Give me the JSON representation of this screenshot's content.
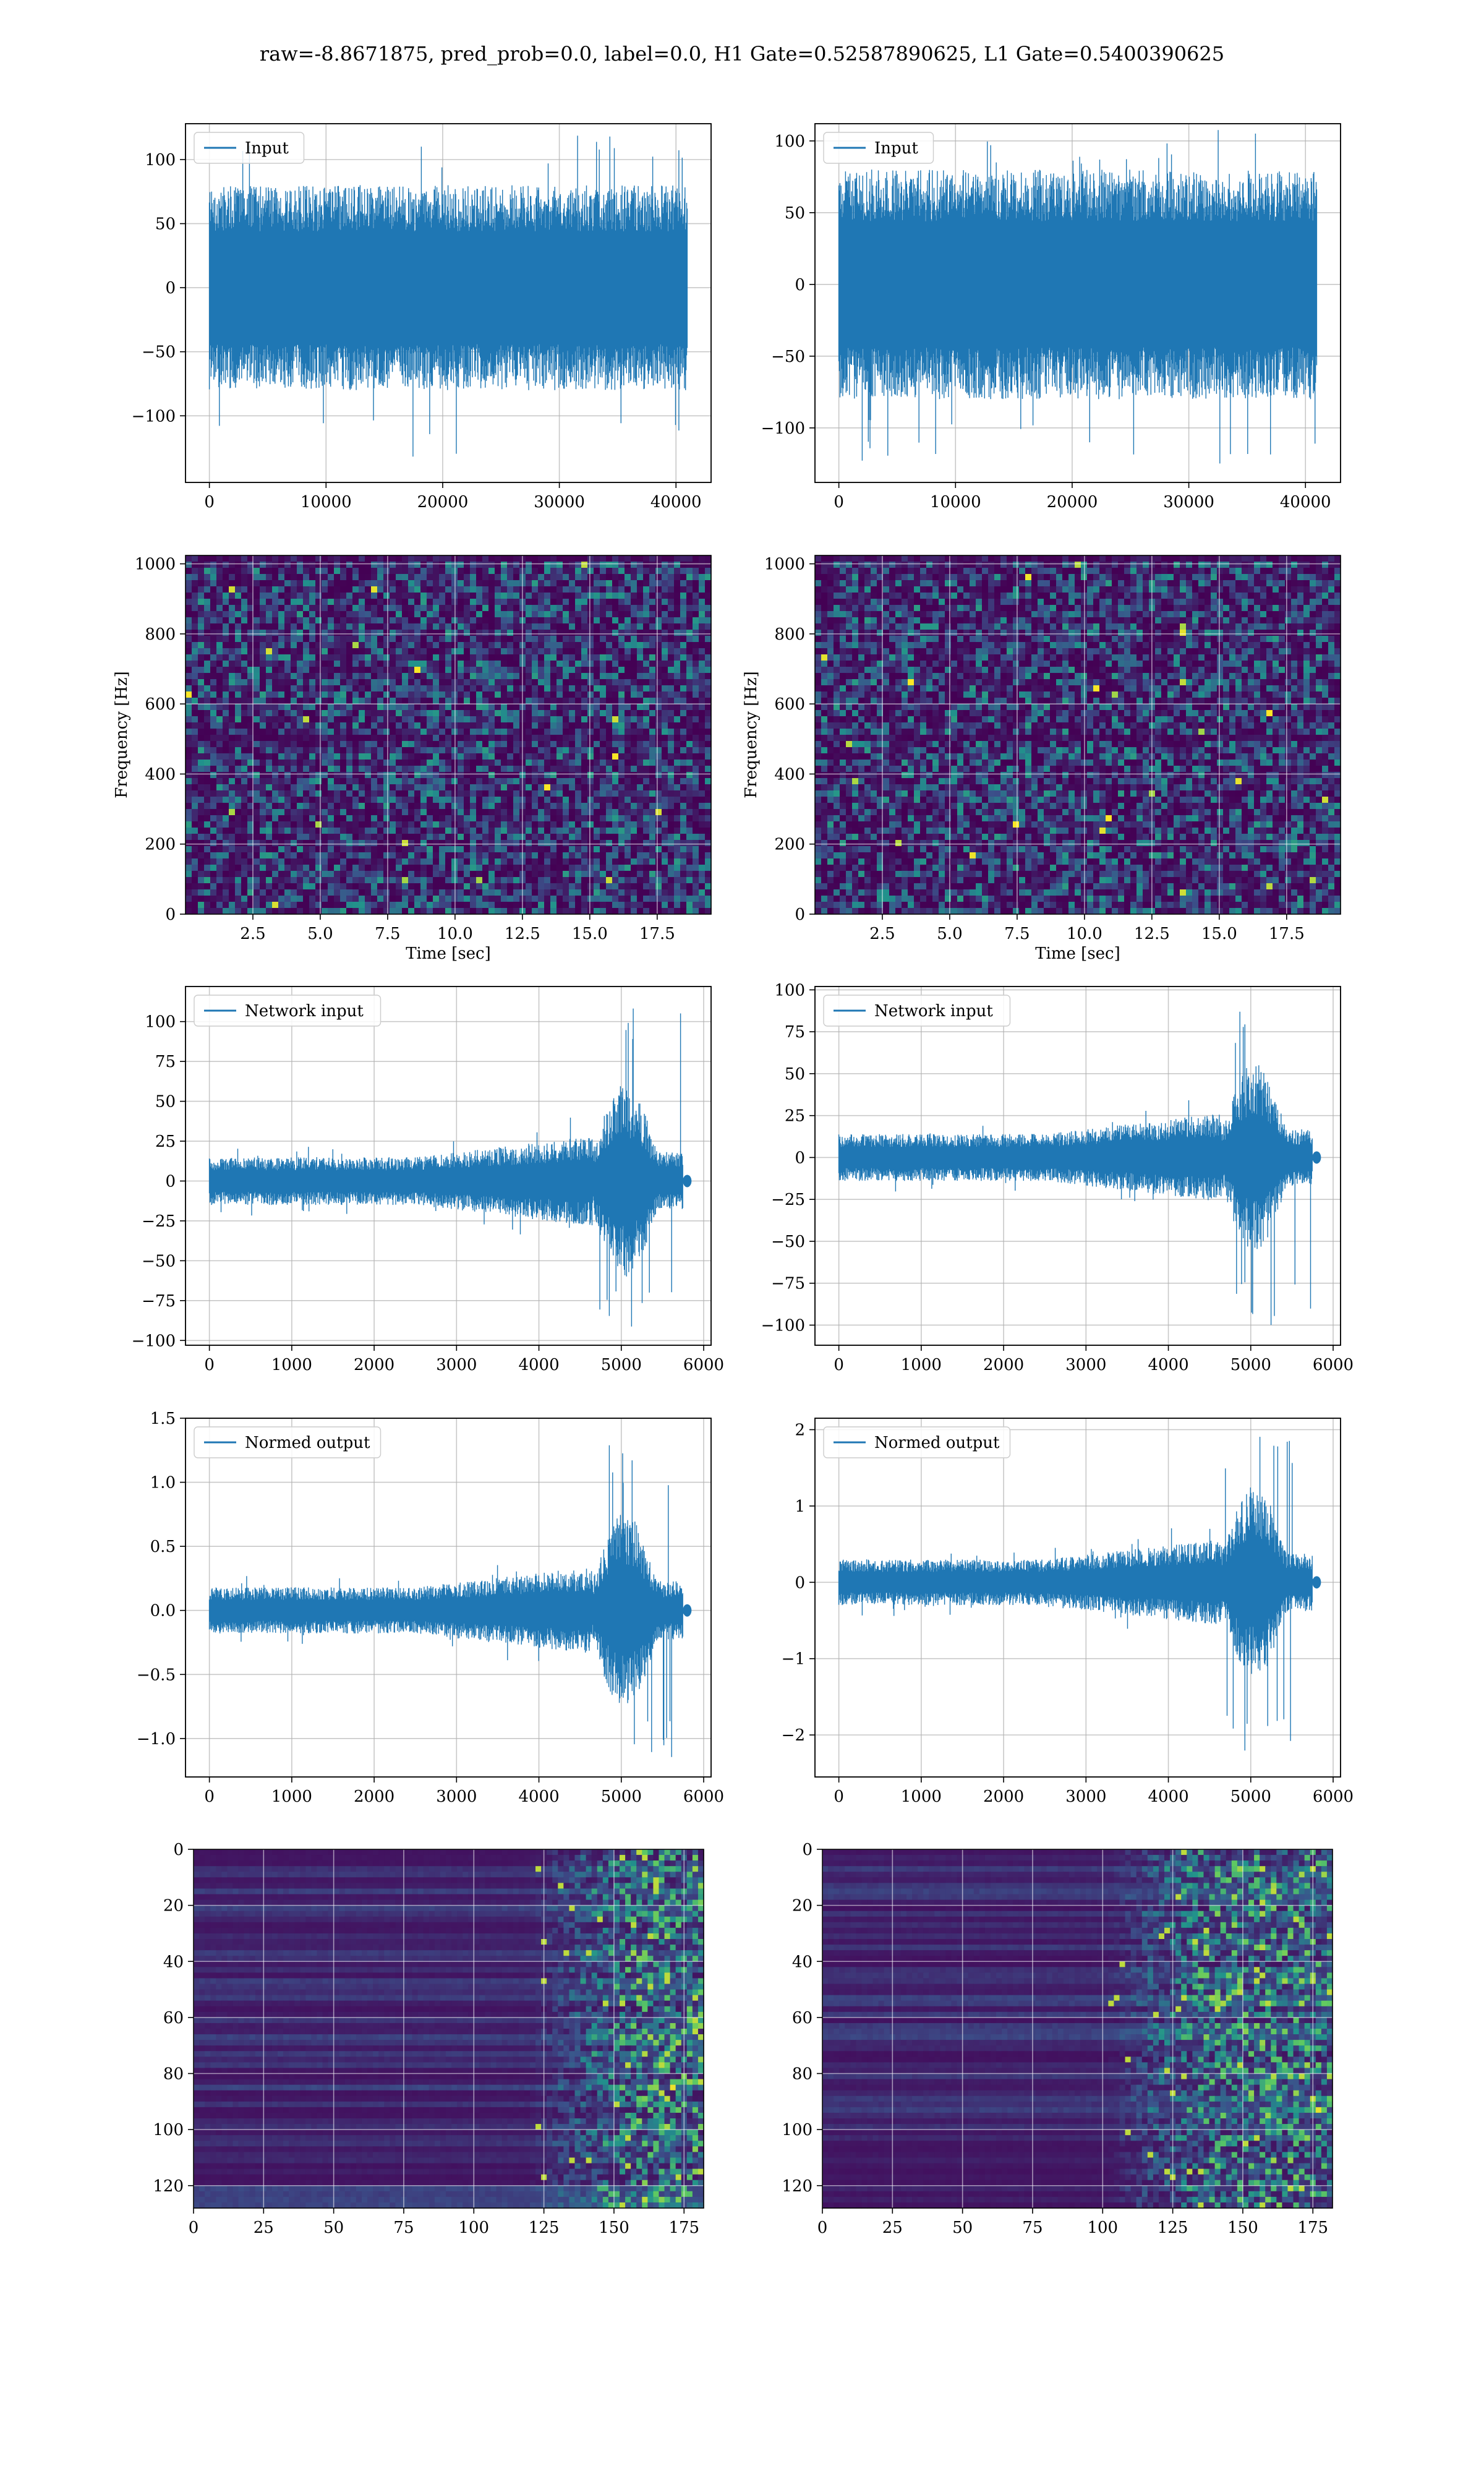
{
  "suptitle": "raw=-8.8671875, pred_prob=0.0, label=0.0, H1 Gate=0.52587890625, L1 Gate=0.5400390625",
  "colors": {
    "line": "#1f77b4",
    "grid": "#b0b0b0",
    "viridis_low": "#440154",
    "viridis_high": "#fde725"
  },
  "chart_data": [
    {
      "id": "h1-input",
      "type": "line",
      "legend": "Input",
      "legend_position": "upper-left",
      "grid": true,
      "xlim": [
        -2048,
        43008
      ],
      "ylim": [
        -152,
        128
      ],
      "xticks": [
        0,
        10000,
        20000,
        30000,
        40000
      ],
      "xtick_labels": [
        "0",
        "10000",
        "20000",
        "30000",
        "40000"
      ],
      "yticks": [
        -100,
        -50,
        0,
        50,
        100
      ],
      "ytick_labels": [
        "−100",
        "−50",
        "0",
        "50",
        "100"
      ],
      "series": [
        {
          "x_range": [
            0,
            40960
          ],
          "envelope_hi": 80,
          "envelope_lo": -80,
          "peak_max": 120,
          "peak_min": -135
        }
      ]
    },
    {
      "id": "l1-input",
      "type": "line",
      "legend": "Input",
      "legend_position": "upper-left",
      "grid": true,
      "xlim": [
        -2048,
        43008
      ],
      "ylim": [
        -138,
        112
      ],
      "xticks": [
        0,
        10000,
        20000,
        30000,
        40000
      ],
      "xtick_labels": [
        "0",
        "10000",
        "20000",
        "30000",
        "40000"
      ],
      "yticks": [
        -100,
        -50,
        0,
        50,
        100
      ],
      "ytick_labels": [
        "−100",
        "−50",
        "0",
        "50",
        "100"
      ],
      "series": [
        {
          "x_range": [
            0,
            40960
          ],
          "envelope_hi": 80,
          "envelope_lo": -80,
          "peak_max": 108,
          "peak_min": -125
        }
      ]
    },
    {
      "id": "h1-spectrogram",
      "type": "heatmap",
      "colormap": "viridis",
      "grid": true,
      "xlabel": "Time [sec]",
      "ylabel": "Frequency [Hz]",
      "xlim": [
        0,
        19.5
      ],
      "ylim": [
        0,
        1024
      ],
      "xticks": [
        2.5,
        5.0,
        7.5,
        10.0,
        12.5,
        15.0,
        17.5
      ],
      "xtick_labels": [
        "2.5",
        "5.0",
        "7.5",
        "10.0",
        "12.5",
        "15.0",
        "17.5"
      ],
      "yticks": [
        0,
        200,
        400,
        600,
        800,
        1000
      ],
      "ytick_labels": [
        "0",
        "200",
        "400",
        "600",
        "800",
        "1000"
      ]
    },
    {
      "id": "l1-spectrogram",
      "type": "heatmap",
      "colormap": "viridis",
      "grid": true,
      "xlabel": "Time [sec]",
      "ylabel": "Frequency [Hz]",
      "xlim": [
        0,
        19.5
      ],
      "ylim": [
        0,
        1024
      ],
      "xticks": [
        2.5,
        5.0,
        7.5,
        10.0,
        12.5,
        15.0,
        17.5
      ],
      "xtick_labels": [
        "2.5",
        "5.0",
        "7.5",
        "10.0",
        "12.5",
        "15.0",
        "17.5"
      ],
      "yticks": [
        0,
        200,
        400,
        600,
        800,
        1000
      ],
      "ytick_labels": [
        "0",
        "200",
        "400",
        "600",
        "800",
        "1000"
      ]
    },
    {
      "id": "h1-network-input",
      "type": "line",
      "legend": "Network input",
      "legend_position": "upper-left",
      "grid": true,
      "xlim": [
        -290,
        6090
      ],
      "ylim": [
        -103,
        122
      ],
      "xticks": [
        0,
        1000,
        2000,
        3000,
        4000,
        5000,
        6000
      ],
      "xtick_labels": [
        "0",
        "1000",
        "2000",
        "3000",
        "4000",
        "5000",
        "6000"
      ],
      "yticks": [
        -100,
        -75,
        -50,
        -25,
        0,
        25,
        50,
        75,
        100
      ],
      "ytick_labels": [
        "−100",
        "−75",
        "−50",
        "−25",
        "0",
        "25",
        "50",
        "75",
        "100"
      ],
      "series": [
        {
          "x_range": [
            0,
            5800
          ],
          "quiet_amp": 15,
          "chirp_start": 4650,
          "chirp_end": 5750,
          "peak_max": 110,
          "peak_min": -93
        }
      ]
    },
    {
      "id": "l1-network-input",
      "type": "line",
      "legend": "Network input",
      "legend_position": "upper-left",
      "grid": true,
      "xlim": [
        -290,
        6090
      ],
      "ylim": [
        -112,
        102
      ],
      "xticks": [
        0,
        1000,
        2000,
        3000,
        4000,
        5000,
        6000
      ],
      "xtick_labels": [
        "0",
        "1000",
        "2000",
        "3000",
        "4000",
        "5000",
        "6000"
      ],
      "yticks": [
        -100,
        -75,
        -50,
        -25,
        0,
        25,
        50,
        75,
        100
      ],
      "ytick_labels": [
        "−100",
        "−75",
        "−50",
        "−25",
        "0",
        "25",
        "50",
        "75",
        "100"
      ],
      "series": [
        {
          "x_range": [
            0,
            5800
          ],
          "quiet_amp": 14,
          "chirp_start": 4650,
          "chirp_end": 5750,
          "peak_max": 92,
          "peak_min": -102
        }
      ]
    },
    {
      "id": "h1-normed-output",
      "type": "line",
      "legend": "Normed output",
      "legend_position": "upper-left",
      "grid": true,
      "xlim": [
        -290,
        6090
      ],
      "ylim": [
        -1.3,
        1.5
      ],
      "xticks": [
        0,
        1000,
        2000,
        3000,
        4000,
        5000,
        6000
      ],
      "xtick_labels": [
        "0",
        "1000",
        "2000",
        "3000",
        "4000",
        "5000",
        "6000"
      ],
      "yticks": [
        -1.0,
        -0.5,
        0.0,
        0.5,
        1.0,
        1.5
      ],
      "ytick_labels": [
        "−1.0",
        "−0.5",
        "0.0",
        "0.5",
        "1.0",
        "1.5"
      ],
      "series": [
        {
          "x_range": [
            0,
            5800
          ],
          "quiet_amp": 0.18,
          "chirp_start": 4650,
          "chirp_end": 5750,
          "peak_max": 1.38,
          "peak_min": -1.2
        }
      ]
    },
    {
      "id": "l1-normed-output",
      "type": "line",
      "legend": "Normed output",
      "legend_position": "upper-left",
      "grid": true,
      "xlim": [
        -290,
        6090
      ],
      "ylim": [
        -2.55,
        2.15
      ],
      "xticks": [
        0,
        1000,
        2000,
        3000,
        4000,
        5000,
        6000
      ],
      "xtick_labels": [
        "0",
        "1000",
        "2000",
        "3000",
        "4000",
        "5000",
        "6000"
      ],
      "yticks": [
        -2,
        -1,
        0,
        1,
        2
      ],
      "ytick_labels": [
        "−2",
        "−1",
        "0",
        "1",
        "2"
      ],
      "series": [
        {
          "x_range": [
            0,
            5800
          ],
          "quiet_amp": 0.3,
          "chirp_start": 4650,
          "chirp_end": 5750,
          "peak_max": 2.02,
          "peak_min": -2.3
        }
      ]
    },
    {
      "id": "h1-feature-map",
      "type": "heatmap",
      "colormap": "viridis",
      "grid": true,
      "y_inverted": true,
      "xlim": [
        0,
        182
      ],
      "ylim": [
        128,
        0
      ],
      "active_start": 120,
      "xticks": [
        0,
        25,
        50,
        75,
        100,
        125,
        150,
        175
      ],
      "xtick_labels": [
        "0",
        "25",
        "50",
        "75",
        "100",
        "125",
        "150",
        "175"
      ],
      "yticks": [
        0,
        20,
        40,
        60,
        80,
        100,
        120
      ],
      "ytick_labels": [
        "0",
        "20",
        "40",
        "60",
        "80",
        "100",
        "120"
      ]
    },
    {
      "id": "l1-feature-map",
      "type": "heatmap",
      "colormap": "viridis",
      "grid": true,
      "y_inverted": true,
      "xlim": [
        0,
        182
      ],
      "ylim": [
        128,
        0
      ],
      "active_start": 102,
      "xticks": [
        0,
        25,
        50,
        75,
        100,
        125,
        150,
        175
      ],
      "xtick_labels": [
        "0",
        "25",
        "50",
        "75",
        "100",
        "125",
        "150",
        "175"
      ],
      "yticks": [
        0,
        20,
        40,
        60,
        80,
        100,
        120
      ],
      "ytick_labels": [
        "0",
        "20",
        "40",
        "60",
        "80",
        "100",
        "120"
      ]
    }
  ]
}
